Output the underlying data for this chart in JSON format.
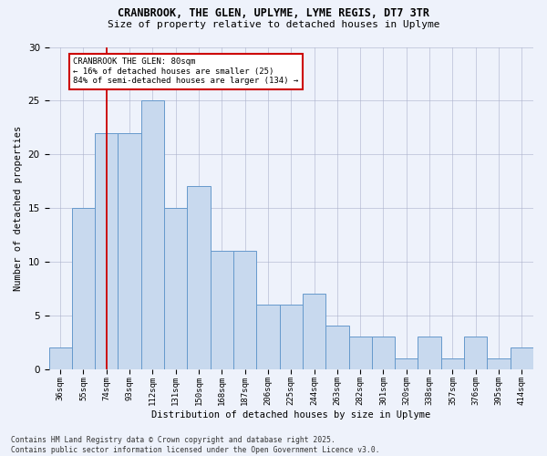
{
  "title1": "CRANBROOK, THE GLEN, UPLYME, LYME REGIS, DT7 3TR",
  "title2": "Size of property relative to detached houses in Uplyme",
  "xlabel": "Distribution of detached houses by size in Uplyme",
  "ylabel": "Number of detached properties",
  "categories": [
    "36sqm",
    "55sqm",
    "74sqm",
    "93sqm",
    "112sqm",
    "131sqm",
    "150sqm",
    "168sqm",
    "187sqm",
    "206sqm",
    "225sqm",
    "244sqm",
    "263sqm",
    "282sqm",
    "301sqm",
    "320sqm",
    "338sqm",
    "357sqm",
    "376sqm",
    "395sqm",
    "414sqm"
  ],
  "values": [
    2,
    15,
    22,
    22,
    25,
    15,
    17,
    11,
    11,
    6,
    6,
    7,
    4,
    3,
    3,
    1,
    3,
    1,
    3,
    1,
    2
  ],
  "bar_color": "#c8d9ee",
  "bar_edge_color": "#6699cc",
  "vline_x": 2.0,
  "vline_color": "#cc0000",
  "annotation_text": "CRANBROOK THE GLEN: 80sqm\n← 16% of detached houses are smaller (25)\n84% of semi-detached houses are larger (134) →",
  "annotation_box_color": "#ffffff",
  "annotation_box_edge": "#cc0000",
  "footer": "Contains HM Land Registry data © Crown copyright and database right 2025.\nContains public sector information licensed under the Open Government Licence v3.0.",
  "ylim": [
    0,
    30
  ],
  "background_color": "#eef2fb"
}
